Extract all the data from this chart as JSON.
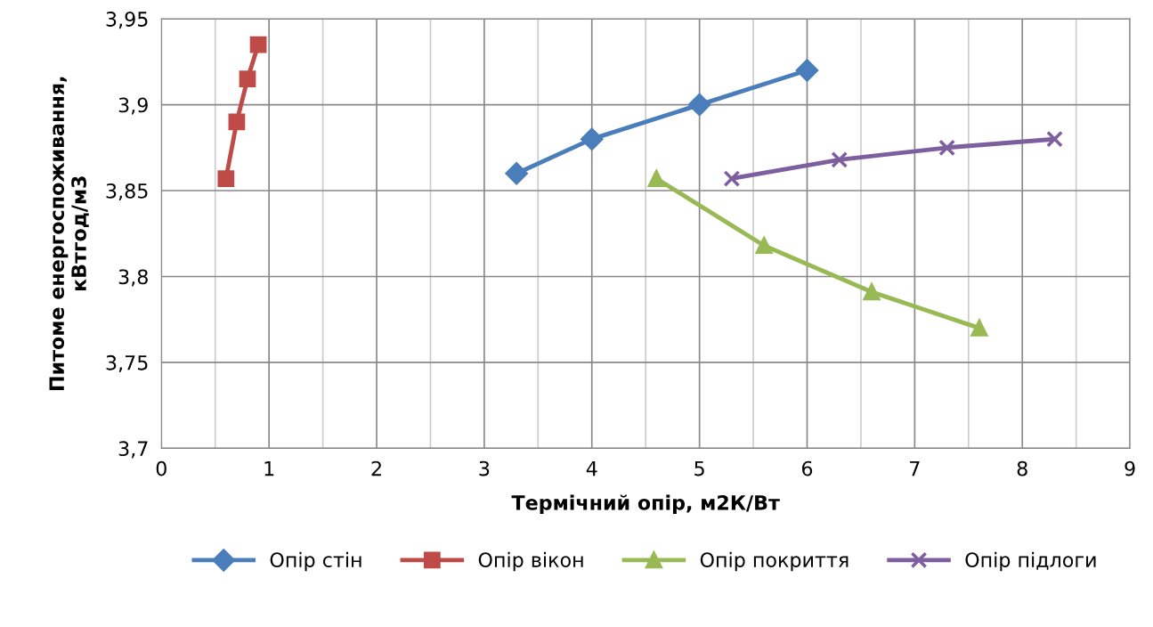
{
  "chart_data": {
    "type": "line",
    "xlabel": "Термічний опір, м2К/Вт",
    "ylabel": "Питоме енергоспоживання,\nкВтгод/м3",
    "xlim": [
      0,
      9
    ],
    "ylim": [
      3.7,
      3.95
    ],
    "xticks": [
      0,
      {
        "value": 0.5,
        "label": null
      },
      1,
      {
        "value": 1.5,
        "label": null
      },
      2,
      {
        "value": 2.5,
        "label": null
      },
      3,
      {
        "value": 3.5,
        "label": null
      },
      4,
      {
        "value": 4.5,
        "label": null
      },
      5,
      {
        "value": 5.5,
        "label": null
      },
      6,
      {
        "value": 6.5,
        "label": null
      },
      7,
      {
        "value": 7.5,
        "label": null
      },
      8,
      {
        "value": 8.5,
        "label": null
      },
      9
    ],
    "yticks": [
      {
        "value": 3.7,
        "label": "3,7"
      },
      {
        "value": 3.75,
        "label": "3,75"
      },
      {
        "value": 3.8,
        "label": "3,8"
      },
      {
        "value": 3.85,
        "label": "3,85"
      },
      {
        "value": 3.9,
        "label": "3,9"
      },
      {
        "value": 3.95,
        "label": "3,95"
      }
    ],
    "grid": true,
    "legend": "bottom",
    "line_style": "solid",
    "series": [
      {
        "name": "Опір стін",
        "color": "#4a7ebb",
        "marker": "diamond",
        "x": [
          3.3,
          4,
          5,
          6
        ],
        "values": [
          3.86,
          3.88,
          3.9,
          3.92
        ]
      },
      {
        "name": "Опір вікон",
        "color": "#be4b48",
        "marker": "square",
        "x": [
          0.6,
          0.7,
          0.8,
          0.9
        ],
        "values": [
          3.857,
          3.89,
          3.915,
          3.935
        ]
      },
      {
        "name": "Опір покриття",
        "color": "#98b954",
        "marker": "triangle",
        "x": [
          4.6,
          5.6,
          6.6,
          7.6
        ],
        "values": [
          3.857,
          3.818,
          3.791,
          3.77
        ]
      },
      {
        "name": "Опір підлоги",
        "color": "#7d5fa0",
        "marker": "cross",
        "x": [
          5.3,
          6.3,
          7.3,
          8.3
        ],
        "values": [
          3.857,
          3.868,
          3.875,
          3.88
        ]
      }
    ]
  }
}
